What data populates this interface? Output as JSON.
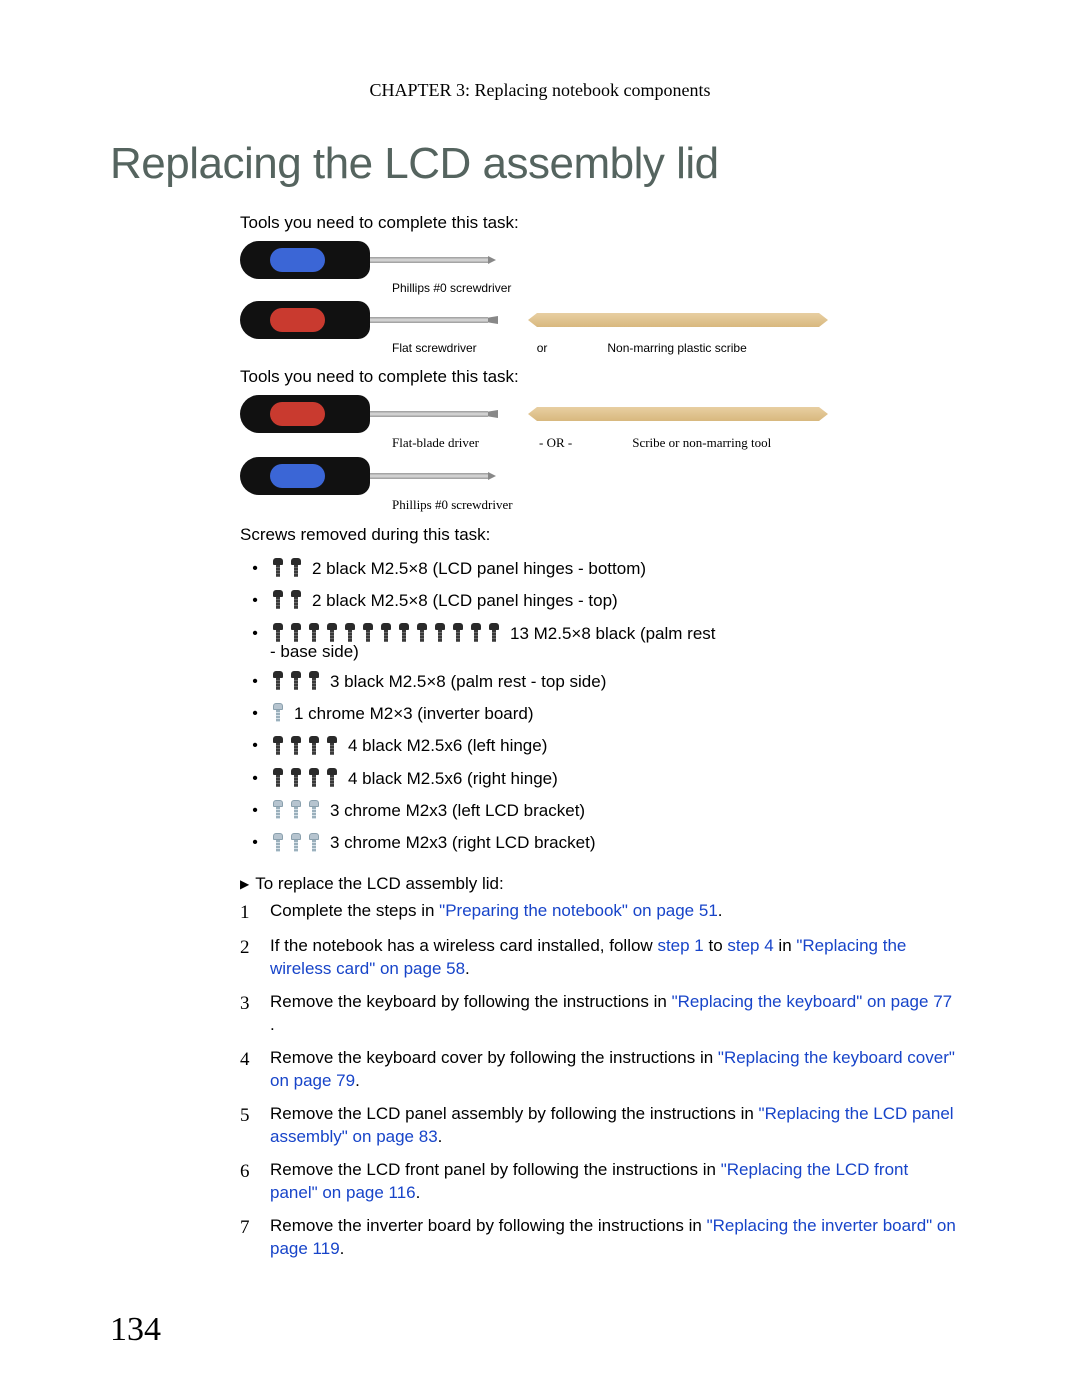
{
  "header": "CHAPTER 3: Replacing notebook components",
  "title": "Replacing the LCD assembly lid",
  "tools_label_1": "Tools you need to complete this task:",
  "tools_label_2": "Tools you need to complete this task:",
  "tool_set_1": {
    "item1_label": "Phillips #0 screwdriver",
    "item2_label": "Flat screwdriver",
    "or": "or",
    "item3_label": "Non-marring plastic scribe"
  },
  "tool_set_2": {
    "item1_label": "Flat-blade driver",
    "or": "- OR -",
    "item2_label": "Scribe or non-marring tool",
    "item3_label": "Phillips #0 screwdriver"
  },
  "screws_label": "Screws removed during this task:",
  "screws": [
    {
      "count": 2,
      "color": "black",
      "text": "2 black M2.5×8 (LCD panel hinges - bottom)"
    },
    {
      "count": 2,
      "color": "black",
      "text": "2 black M2.5×8 (LCD panel hinges - top)"
    },
    {
      "count": 13,
      "color": "black",
      "text": "13 M2.5×8 black (palm rest",
      "continuation": "- base side)"
    },
    {
      "count": 3,
      "color": "black",
      "text": "3 black M2.5×8 (palm rest - top side)"
    },
    {
      "count": 1,
      "color": "chrome",
      "text": "1 chrome M2×3 (inverter board)"
    },
    {
      "count": 4,
      "color": "black",
      "text": "4 black M2.5x6 (left hinge)"
    },
    {
      "count": 4,
      "color": "black",
      "text": "4 black M2.5x6 (right hinge)"
    },
    {
      "count": 3,
      "color": "chrome",
      "text": "3 chrome M2x3 (left LCD bracket)"
    },
    {
      "count": 3,
      "color": "chrome",
      "text": "3 chrome M2x3 (right LCD bracket)"
    }
  ],
  "proc_heading": "To replace the LCD assembly lid:",
  "steps": [
    {
      "pre": "Complete the steps in ",
      "link": "\"Preparing the notebook\" on page 51",
      "post": "."
    },
    {
      "pre": "If the notebook has a wireless card installed, follow ",
      "link1": "step 1",
      "mid": " to ",
      "link2": "step 4",
      "post1": " in ",
      "link3": "\"Replacing the wireless card\" on page 58",
      "post2": "."
    },
    {
      "pre": "Remove the keyboard by following the instructions in ",
      "link": "\"Replacing the keyboard\" on page 77",
      "post": " ."
    },
    {
      "pre": "Remove the keyboard cover by following the instructions in ",
      "link": "\"Replacing the keyboard cover\" on page 79",
      "post": "."
    },
    {
      "pre": "Remove the LCD panel assembly by following the instructions in ",
      "link": "\"Replacing the LCD panel assembly\" on page 83",
      "post": "."
    },
    {
      "pre": "Remove the LCD front panel by following the instructions in ",
      "link": "\"Replacing the LCD front panel\" on page 116",
      "post": "."
    },
    {
      "pre": "Remove the inverter board by following the instructions in ",
      "link": "\"Replacing the inverter board\" on page 119",
      "post": "."
    }
  ],
  "page_number": "134",
  "colors": {
    "title": "#55645f",
    "link": "#1744c9",
    "handle_accent_blue": "#3b66d6",
    "handle_accent_red": "#c93a2f",
    "scribe": "#d8b87e"
  }
}
